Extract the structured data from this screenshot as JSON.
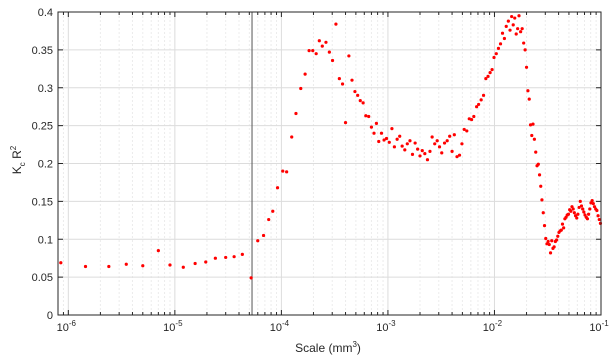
{
  "chart_data": {
    "type": "scatter",
    "title": "",
    "xlabel": "Scale (mm3)",
    "xlabel_base": "Scale (mm",
    "xlabel_exp": "3",
    "xlabel_close": ")",
    "ylabel": "Kc R2",
    "ylabel_k": "K",
    "ylabel_sub": "c",
    "ylabel_r": " R",
    "ylabel_sup": "2",
    "x_scale": "log",
    "xlim": [
      8e-07,
      0.1
    ],
    "ylim": [
      0,
      0.4
    ],
    "x_ticks": [
      {
        "value": 1e-06,
        "base": "10",
        "exp": "-6"
      },
      {
        "value": 1e-05,
        "base": "10",
        "exp": "-5"
      },
      {
        "value": 0.0001,
        "base": "10",
        "exp": "-4"
      },
      {
        "value": 0.001,
        "base": "10",
        "exp": "-3"
      },
      {
        "value": 0.01,
        "base": "10",
        "exp": "-2"
      },
      {
        "value": 0.1,
        "base": "10",
        "exp": "-1"
      }
    ],
    "y_ticks": [
      {
        "value": 0,
        "label": "0"
      },
      {
        "value": 0.05,
        "label": "0.05"
      },
      {
        "value": 0.1,
        "label": "0.1"
      },
      {
        "value": 0.15,
        "label": "0.15"
      },
      {
        "value": 0.2,
        "label": "0.2"
      },
      {
        "value": 0.25,
        "label": "0.25"
      },
      {
        "value": 0.3,
        "label": "0.3"
      },
      {
        "value": 0.35,
        "label": "0.35"
      },
      {
        "value": 0.4,
        "label": "0.4"
      }
    ],
    "grid": true,
    "vertical_line_x": 5.3e-05,
    "marker_color": "#ff0000",
    "series": [
      {
        "points": [
          [
            8.5e-07,
            0.069
          ],
          [
            1.45e-06,
            0.064
          ],
          [
            2.4e-06,
            0.064
          ],
          [
            3.5e-06,
            0.067
          ],
          [
            5e-06,
            0.065
          ],
          [
            7e-06,
            0.085
          ],
          [
            9e-06,
            0.066
          ],
          [
            1.2e-05,
            0.063
          ],
          [
            1.55e-05,
            0.068
          ],
          [
            1.95e-05,
            0.07
          ],
          [
            2.4e-05,
            0.075
          ],
          [
            3e-05,
            0.076
          ],
          [
            3.6e-05,
            0.077
          ],
          [
            4.3e-05,
            0.08
          ],
          [
            5.2e-05,
            0.049
          ],
          [
            6e-05,
            0.098
          ],
          [
            6.8e-05,
            0.105
          ],
          [
            7.6e-05,
            0.126
          ],
          [
            8.3e-05,
            0.137
          ],
          [
            9.2e-05,
            0.168
          ],
          [
            0.000103,
            0.19
          ],
          [
            0.000112,
            0.189
          ],
          [
            0.000125,
            0.235
          ],
          [
            0.000137,
            0.266
          ],
          [
            0.000152,
            0.299
          ],
          [
            0.000167,
            0.318
          ],
          [
            0.000182,
            0.349
          ],
          [
            0.000197,
            0.349
          ],
          [
            0.000212,
            0.345
          ],
          [
            0.000227,
            0.362
          ],
          [
            0.000242,
            0.355
          ],
          [
            0.000262,
            0.36
          ],
          [
            0.000282,
            0.347
          ],
          [
            0.000302,
            0.336
          ],
          [
            0.000325,
            0.384
          ],
          [
            0.00035,
            0.312
          ],
          [
            0.000375,
            0.305
          ],
          [
            0.0004,
            0.254
          ],
          [
            0.00043,
            0.342
          ],
          [
            0.00046,
            0.31
          ],
          [
            0.00049,
            0.295
          ],
          [
            0.00052,
            0.29
          ],
          [
            0.00055,
            0.283
          ],
          [
            0.000585,
            0.28
          ],
          [
            0.00062,
            0.263
          ],
          [
            0.00066,
            0.262
          ],
          [
            0.0007,
            0.248
          ],
          [
            0.00074,
            0.24
          ],
          [
            0.00078,
            0.253
          ],
          [
            0.00082,
            0.229
          ],
          [
            0.00087,
            0.24
          ],
          [
            0.00092,
            0.231
          ],
          [
            0.00097,
            0.233
          ],
          [
            0.00103,
            0.228
          ],
          [
            0.00109,
            0.246
          ],
          [
            0.00115,
            0.222
          ],
          [
            0.00122,
            0.232
          ],
          [
            0.00129,
            0.236
          ],
          [
            0.00136,
            0.223
          ],
          [
            0.00144,
            0.218
          ],
          [
            0.00152,
            0.226
          ],
          [
            0.00161,
            0.23
          ],
          [
            0.0017,
            0.212
          ],
          [
            0.0018,
            0.227
          ],
          [
            0.0019,
            0.219
          ],
          [
            0.002,
            0.21
          ],
          [
            0.0021,
            0.217
          ],
          [
            0.00222,
            0.213
          ],
          [
            0.00235,
            0.205
          ],
          [
            0.00248,
            0.216
          ],
          [
            0.0026,
            0.235
          ],
          [
            0.00275,
            0.226
          ],
          [
            0.0029,
            0.23
          ],
          [
            0.00305,
            0.222
          ],
          [
            0.0032,
            0.214
          ],
          [
            0.0034,
            0.227
          ],
          [
            0.0036,
            0.23
          ],
          [
            0.0038,
            0.236
          ],
          [
            0.004,
            0.216
          ],
          [
            0.0042,
            0.238
          ],
          [
            0.00445,
            0.209
          ],
          [
            0.0047,
            0.211
          ],
          [
            0.00495,
            0.226
          ],
          [
            0.0052,
            0.245
          ],
          [
            0.0055,
            0.243
          ],
          [
            0.0058,
            0.259
          ],
          [
            0.0061,
            0.258
          ],
          [
            0.0064,
            0.262
          ],
          [
            0.0068,
            0.275
          ],
          [
            0.0071,
            0.278
          ],
          [
            0.0075,
            0.284
          ],
          [
            0.0079,
            0.29
          ],
          [
            0.0083,
            0.312
          ],
          [
            0.0087,
            0.315
          ],
          [
            0.0091,
            0.32
          ],
          [
            0.0095,
            0.324
          ],
          [
            0.0099,
            0.34
          ],
          [
            0.0104,
            0.345
          ],
          [
            0.0109,
            0.352
          ],
          [
            0.0114,
            0.358
          ],
          [
            0.0119,
            0.372
          ],
          [
            0.0124,
            0.365
          ],
          [
            0.0129,
            0.381
          ],
          [
            0.0135,
            0.388
          ],
          [
            0.014,
            0.376
          ],
          [
            0.0145,
            0.394
          ],
          [
            0.015,
            0.383
          ],
          [
            0.0155,
            0.392
          ],
          [
            0.016,
            0.371
          ],
          [
            0.0165,
            0.378
          ],
          [
            0.017,
            0.395
          ],
          [
            0.0176,
            0.374
          ],
          [
            0.0182,
            0.378
          ],
          [
            0.0188,
            0.359
          ],
          [
            0.0194,
            0.35
          ],
          [
            0.02,
            0.327
          ],
          [
            0.0206,
            0.296
          ],
          [
            0.0212,
            0.285
          ],
          [
            0.0218,
            0.251
          ],
          [
            0.0224,
            0.237
          ],
          [
            0.023,
            0.252
          ],
          [
            0.0237,
            0.232
          ],
          [
            0.0244,
            0.215
          ],
          [
            0.0251,
            0.197
          ],
          [
            0.0258,
            0.199
          ],
          [
            0.0265,
            0.185
          ],
          [
            0.0272,
            0.17
          ],
          [
            0.0279,
            0.152
          ],
          [
            0.0287,
            0.135
          ],
          [
            0.0295,
            0.118
          ],
          [
            0.0303,
            0.101
          ],
          [
            0.0311,
            0.094
          ],
          [
            0.0319,
            0.097
          ],
          [
            0.0327,
            0.093
          ],
          [
            0.0336,
            0.082
          ],
          [
            0.0345,
            0.098
          ],
          [
            0.0354,
            0.088
          ],
          [
            0.0363,
            0.09
          ],
          [
            0.0373,
            0.097
          ],
          [
            0.0383,
            0.099
          ],
          [
            0.0393,
            0.104
          ],
          [
            0.0403,
            0.109
          ],
          [
            0.0413,
            0.111
          ],
          [
            0.0424,
            0.112
          ],
          [
            0.0435,
            0.12
          ],
          [
            0.0446,
            0.115
          ],
          [
            0.0458,
            0.127
          ],
          [
            0.047,
            0.129
          ],
          [
            0.0482,
            0.132
          ],
          [
            0.0495,
            0.133
          ],
          [
            0.0508,
            0.139
          ],
          [
            0.0521,
            0.137
          ],
          [
            0.0534,
            0.143
          ],
          [
            0.0548,
            0.14
          ],
          [
            0.0562,
            0.135
          ],
          [
            0.0577,
            0.131
          ],
          [
            0.0592,
            0.128
          ],
          [
            0.0607,
            0.133
          ],
          [
            0.0623,
            0.142
          ],
          [
            0.0639,
            0.15
          ],
          [
            0.0656,
            0.144
          ],
          [
            0.0673,
            0.14
          ],
          [
            0.069,
            0.136
          ],
          [
            0.0708,
            0.132
          ],
          [
            0.0727,
            0.129
          ],
          [
            0.0746,
            0.127
          ],
          [
            0.0765,
            0.133
          ],
          [
            0.0785,
            0.14
          ],
          [
            0.0805,
            0.148
          ],
          [
            0.0826,
            0.151
          ],
          [
            0.0847,
            0.147
          ],
          [
            0.0869,
            0.143
          ],
          [
            0.0892,
            0.14
          ],
          [
            0.0915,
            0.138
          ],
          [
            0.0939,
            0.131
          ],
          [
            0.0963,
            0.126
          ],
          [
            0.0988,
            0.121
          ]
        ]
      }
    ]
  }
}
